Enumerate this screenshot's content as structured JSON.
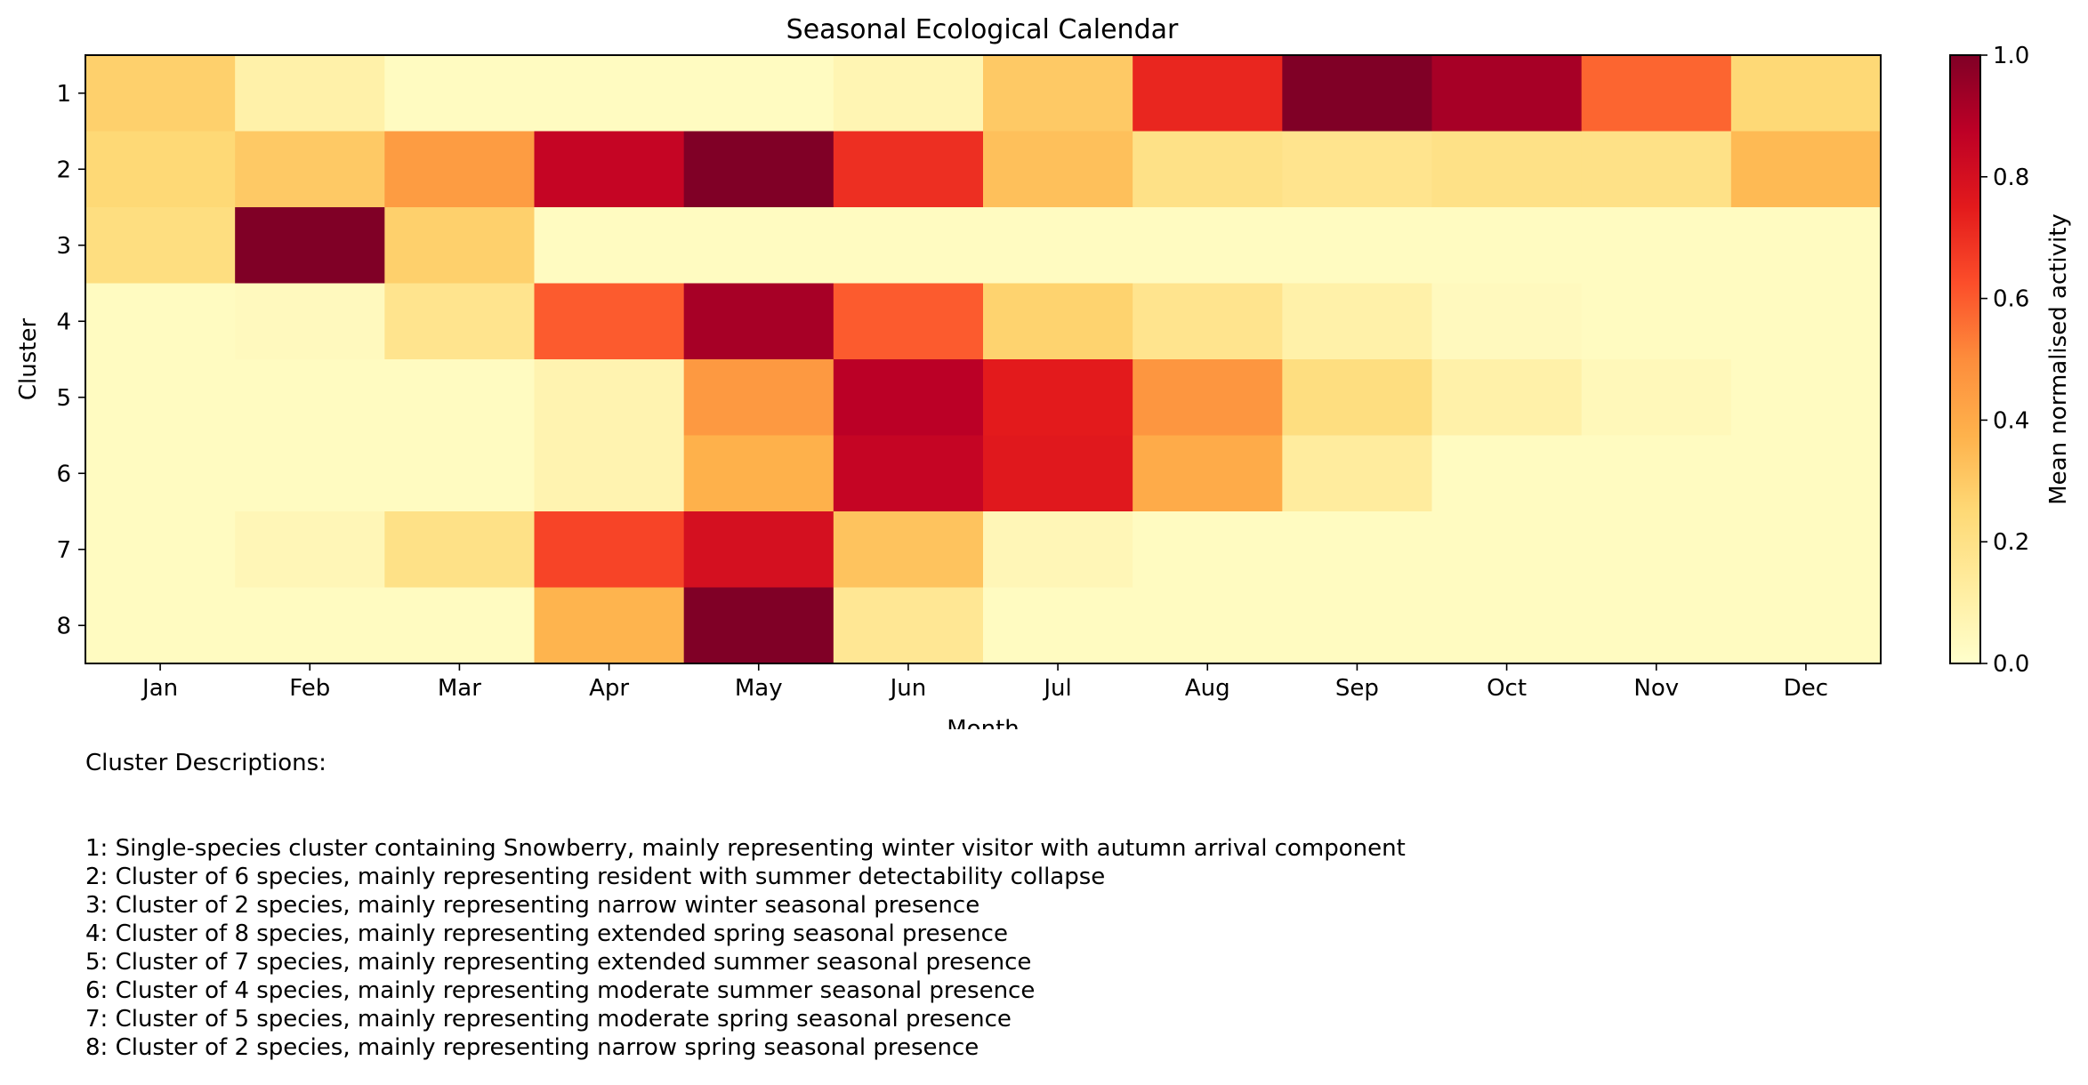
{
  "chart_data": {
    "type": "heatmap",
    "title": "Seasonal Ecological Calendar",
    "xlabel": "Month",
    "ylabel": "Cluster",
    "x": [
      "Jan",
      "Feb",
      "Mar",
      "Apr",
      "May",
      "Jun",
      "Jul",
      "Aug",
      "Sep",
      "Oct",
      "Nov",
      "Dec"
    ],
    "y": [
      "1",
      "2",
      "3",
      "4",
      "5",
      "6",
      "7",
      "8"
    ],
    "values": [
      [
        0.28,
        0.1,
        0.03,
        0.03,
        0.03,
        0.07,
        0.3,
        0.72,
        1.0,
        0.92,
        0.58,
        0.25
      ],
      [
        0.25,
        0.3,
        0.45,
        0.85,
        1.0,
        0.7,
        0.33,
        0.2,
        0.18,
        0.2,
        0.2,
        0.35
      ],
      [
        0.22,
        1.0,
        0.28,
        0.03,
        0.03,
        0.03,
        0.03,
        0.03,
        0.03,
        0.03,
        0.03,
        0.03
      ],
      [
        0.03,
        0.04,
        0.18,
        0.6,
        0.92,
        0.6,
        0.27,
        0.18,
        0.1,
        0.04,
        0.03,
        0.03
      ],
      [
        0.03,
        0.03,
        0.03,
        0.08,
        0.46,
        0.88,
        0.75,
        0.47,
        0.22,
        0.1,
        0.05,
        0.03
      ],
      [
        0.03,
        0.03,
        0.03,
        0.08,
        0.38,
        0.85,
        0.76,
        0.4,
        0.13,
        0.03,
        0.03,
        0.03
      ],
      [
        0.03,
        0.06,
        0.2,
        0.65,
        0.8,
        0.32,
        0.06,
        0.03,
        0.03,
        0.03,
        0.03,
        0.03
      ],
      [
        0.03,
        0.03,
        0.03,
        0.37,
        1.0,
        0.16,
        0.03,
        0.03,
        0.03,
        0.03,
        0.03,
        0.03
      ]
    ],
    "colormap": "YlOrRd",
    "colorbar": {
      "label": "Mean normalised activity",
      "range": [
        0.0,
        1.0
      ],
      "ticks": [
        "0.0",
        "0.2",
        "0.4",
        "0.6",
        "0.8",
        "1.0"
      ]
    },
    "colors": {
      "stops": [
        "#ffffcc",
        "#ffeda0",
        "#fed976",
        "#feb24c",
        "#fd8d3c",
        "#fc4e2a",
        "#e31a1c",
        "#bd0026",
        "#800026"
      ]
    }
  },
  "descriptions": {
    "heading": "Cluster Descriptions:",
    "items": [
      "1: Single-species cluster containing Snowberry, mainly representing winter visitor with autumn arrival component",
      "2: Cluster of 6 species, mainly representing resident with summer detectability collapse",
      "3: Cluster of 2 species, mainly representing narrow winter seasonal presence",
      "4: Cluster of 8 species, mainly representing extended spring seasonal presence",
      "5: Cluster of 7 species, mainly representing extended summer seasonal presence",
      "6: Cluster of 4 species, mainly representing moderate summer seasonal presence",
      "7: Cluster of 5 species, mainly representing moderate spring seasonal presence",
      "8: Cluster of 2 species, mainly representing narrow spring seasonal presence"
    ]
  }
}
